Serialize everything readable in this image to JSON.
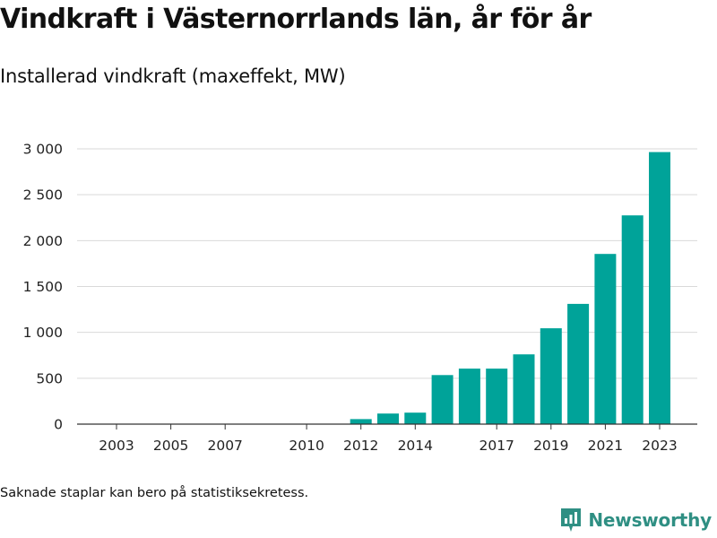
{
  "header": {
    "title": "Vindkraft i Västernorrlands län, år för år",
    "subtitle": "Installerad vindkraft (maxeffekt, MW)"
  },
  "footer": {
    "note": "Saknade staplar kan bero på statistiksekretess.",
    "brand": "Newsworthy",
    "brand_icon": "bar-chart-logo-icon"
  },
  "colors": {
    "bar": "#00a399",
    "brand": "#2f8f83",
    "grid": "#d9d9d9",
    "axis": "#333333"
  },
  "chart_data": {
    "type": "bar",
    "title": "Vindkraft i Västernorrlands län, år för år",
    "subtitle": "Installerad vindkraft (maxeffekt, MW)",
    "xlabel": "",
    "ylabel": "",
    "categories": [
      2003,
      2004,
      2005,
      2006,
      2007,
      2008,
      2009,
      2010,
      2011,
      2012,
      2013,
      2014,
      2015,
      2016,
      2017,
      2018,
      2019,
      2020,
      2021,
      2022,
      2023
    ],
    "values": [
      0,
      0,
      0,
      0,
      0,
      0,
      0,
      0,
      0,
      55,
      115,
      125,
      535,
      605,
      605,
      760,
      1045,
      1310,
      1855,
      2275,
      2965
    ],
    "x_tick_labels": [
      "2003",
      "2005",
      "2007",
      "2010",
      "2012",
      "2014",
      "2017",
      "2019",
      "2021",
      "2023"
    ],
    "x_tick_values": [
      2003,
      2005,
      2007,
      2010,
      2012,
      2014,
      2017,
      2019,
      2021,
      2023
    ],
    "y_tick_values": [
      0,
      500,
      1000,
      1500,
      2000,
      2500,
      3000
    ],
    "y_tick_labels": [
      "0",
      "500",
      "1 000",
      "1 500",
      "2 000",
      "2 500",
      "3 000"
    ],
    "ylim": [
      0,
      3000
    ],
    "grid": true,
    "legend": "none"
  }
}
